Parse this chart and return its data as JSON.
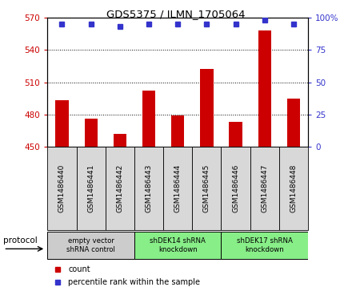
{
  "title": "GDS5375 / ILMN_1705064",
  "samples": [
    "GSM1486440",
    "GSM1486441",
    "GSM1486442",
    "GSM1486443",
    "GSM1486444",
    "GSM1486445",
    "GSM1486446",
    "GSM1486447",
    "GSM1486448"
  ],
  "counts": [
    493,
    476,
    462,
    502,
    479,
    522,
    473,
    558,
    495
  ],
  "percentile_ranks": [
    95,
    95,
    93,
    95,
    95,
    95,
    95,
    98,
    95
  ],
  "ylim_left": [
    450,
    570
  ],
  "ylim_right": [
    0,
    100
  ],
  "yticks_left": [
    450,
    480,
    510,
    540,
    570
  ],
  "yticks_right": [
    0,
    25,
    50,
    75,
    100
  ],
  "bar_color": "#cc0000",
  "dot_color": "#3333cc",
  "bar_width": 0.45,
  "groups": [
    {
      "label": "empty vector\nshRNA control",
      "start": 0,
      "end": 3,
      "color": "#cccccc"
    },
    {
      "label": "shDEK14 shRNA\nknockdown",
      "start": 3,
      "end": 6,
      "color": "#88ee88"
    },
    {
      "label": "shDEK17 shRNA\nknockdown",
      "start": 6,
      "end": 9,
      "color": "#88ee88"
    }
  ],
  "protocol_label": "protocol",
  "legend_count_label": "count",
  "legend_pct_label": "percentile rank within the sample",
  "plot_bg_color": "#ffffff",
  "tick_label_color_left": "#cc0000",
  "tick_label_color_right": "#3333cc",
  "tick_box_bg": "#d8d8d8",
  "figsize": [
    4.4,
    3.63
  ],
  "dpi": 100
}
